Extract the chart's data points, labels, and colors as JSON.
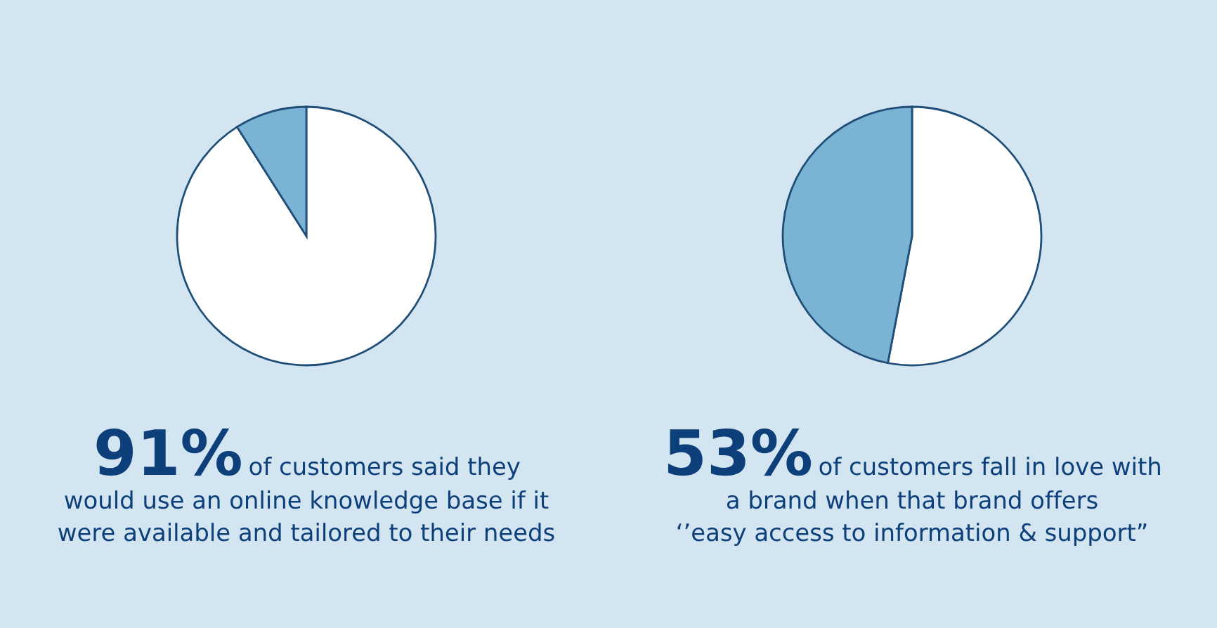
{
  "chart_data": [
    {
      "type": "pie",
      "categories": [
        null,
        null
      ],
      "values": [
        91,
        9
      ],
      "colors": [
        "#ffffff",
        "#7ab3d4"
      ],
      "annotations": [
        "91%",
        "of customers said they",
        "would use an online knowledge base if it",
        "were available and tailored to their needs"
      ]
    },
    {
      "type": "pie",
      "categories": [
        null,
        null
      ],
      "values": [
        53,
        47
      ],
      "colors": [
        "#ffffff",
        "#7ab3d4"
      ],
      "annotations": [
        "53%",
        "of customers fall in love with",
        "a brand when that brand offers",
        "‘’easy access to information & support”"
      ]
    }
  ]
}
